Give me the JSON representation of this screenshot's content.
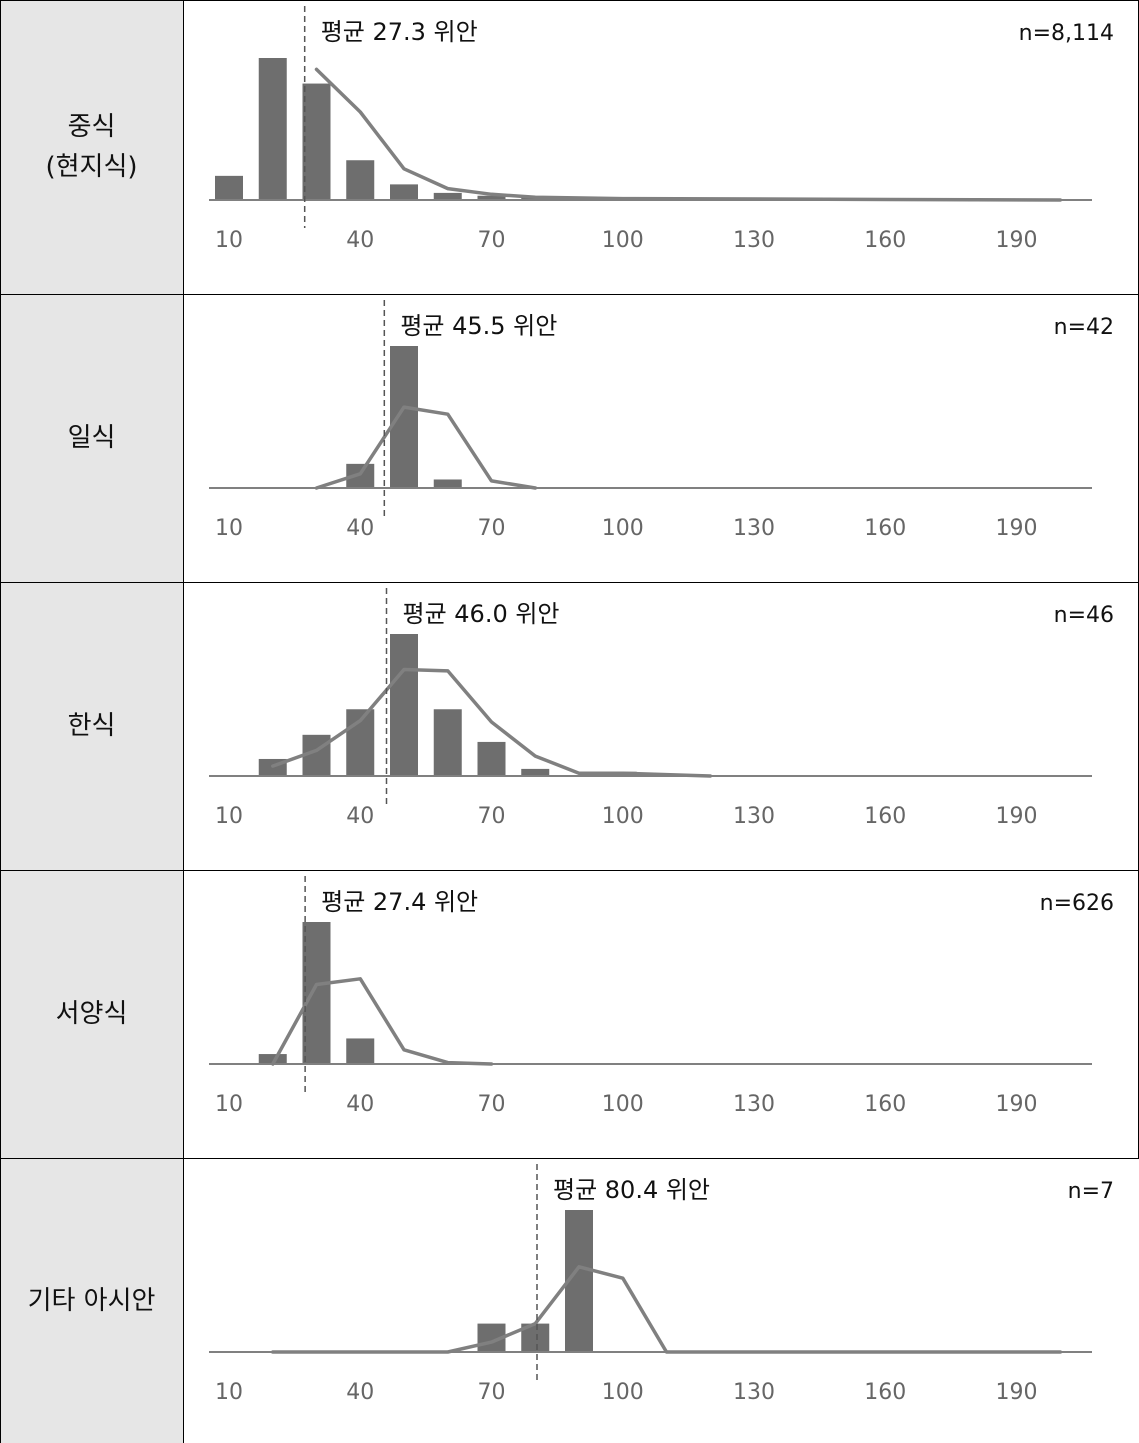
{
  "colors": {
    "bar": "#6e6e6e",
    "line": "#808080",
    "axis": "#808080",
    "label_bg": "#e6e6e6"
  },
  "x_tick_labels": [
    "10",
    "40",
    "70",
    "100",
    "130",
    "160",
    "190"
  ],
  "chart_data": [
    {
      "type": "bar",
      "category": "중식\n(현지식)",
      "mean_label": "평균 27.3 위안",
      "mean": 27.3,
      "n_label": "n=8,114",
      "x_ticks": [
        10,
        40,
        70,
        100,
        130,
        160,
        190
      ],
      "bars": [
        [
          10,
          0.17
        ],
        [
          20,
          1.0
        ],
        [
          30,
          0.82
        ],
        [
          40,
          0.28
        ],
        [
          50,
          0.11
        ],
        [
          60,
          0.05
        ],
        [
          70,
          0.03
        ],
        [
          80,
          0.015
        ]
      ],
      "line": [
        [
          30,
          0.92
        ],
        [
          40,
          0.62
        ],
        [
          50,
          0.22
        ],
        [
          60,
          0.08
        ],
        [
          70,
          0.04
        ],
        [
          80,
          0.02
        ],
        [
          100,
          0.01
        ],
        [
          200,
          0.0
        ]
      ],
      "ylim": [
        0,
        1
      ]
    },
    {
      "type": "bar",
      "category": "일식",
      "mean_label": "평균 45.5 위안",
      "mean": 45.5,
      "n_label": "n=42",
      "x_ticks": [
        10,
        40,
        70,
        100,
        130,
        160,
        190
      ],
      "bars": [
        [
          40,
          0.17
        ],
        [
          50,
          1.0
        ],
        [
          60,
          0.06
        ]
      ],
      "line": [
        [
          30,
          0.0
        ],
        [
          40,
          0.1
        ],
        [
          50,
          0.57
        ],
        [
          60,
          0.52
        ],
        [
          70,
          0.05
        ],
        [
          80,
          0.0
        ]
      ],
      "ylim": [
        0,
        1
      ]
    },
    {
      "type": "bar",
      "category": "한식",
      "mean_label": "평균 46.0 위안",
      "mean": 46.0,
      "n_label": "n=46",
      "x_ticks": [
        10,
        40,
        70,
        100,
        130,
        160,
        190
      ],
      "bars": [
        [
          20,
          0.12
        ],
        [
          30,
          0.29
        ],
        [
          40,
          0.47
        ],
        [
          50,
          1.0
        ],
        [
          60,
          0.47
        ],
        [
          70,
          0.24
        ],
        [
          80,
          0.05
        ],
        [
          100,
          0.03
        ]
      ],
      "line": [
        [
          20,
          0.07
        ],
        [
          30,
          0.18
        ],
        [
          40,
          0.39
        ],
        [
          50,
          0.75
        ],
        [
          60,
          0.74
        ],
        [
          70,
          0.38
        ],
        [
          80,
          0.14
        ],
        [
          90,
          0.02
        ],
        [
          100,
          0.02
        ],
        [
          110,
          0.01
        ],
        [
          120,
          0.0
        ]
      ],
      "ylim": [
        0,
        1
      ]
    },
    {
      "type": "bar",
      "category": "서양식",
      "mean_label": "평균 27.4 위안",
      "mean": 27.4,
      "n_label": "n=626",
      "x_ticks": [
        10,
        40,
        70,
        100,
        130,
        160,
        190
      ],
      "bars": [
        [
          20,
          0.07
        ],
        [
          30,
          1.0
        ],
        [
          40,
          0.18
        ]
      ],
      "line": [
        [
          20,
          0.0
        ],
        [
          30,
          0.56
        ],
        [
          40,
          0.6
        ],
        [
          50,
          0.1
        ],
        [
          60,
          0.01
        ],
        [
          70,
          0.0
        ]
      ],
      "ylim": [
        0,
        1
      ]
    },
    {
      "type": "bar",
      "category": "기타 아시안",
      "mean_label": "평균 80.4 위안",
      "mean": 80.4,
      "n_label": "n=7",
      "x_ticks": [
        10,
        40,
        70,
        100,
        130,
        160,
        190
      ],
      "bars": [
        [
          70,
          0.2
        ],
        [
          80,
          0.2
        ],
        [
          90,
          1.0
        ]
      ],
      "line": [
        [
          20,
          0.0
        ],
        [
          60,
          0.0
        ],
        [
          70,
          0.07
        ],
        [
          80,
          0.2
        ],
        [
          90,
          0.6
        ],
        [
          100,
          0.52
        ],
        [
          110,
          0.0
        ],
        [
          200,
          0.0
        ]
      ],
      "ylim": [
        0,
        1
      ]
    }
  ]
}
